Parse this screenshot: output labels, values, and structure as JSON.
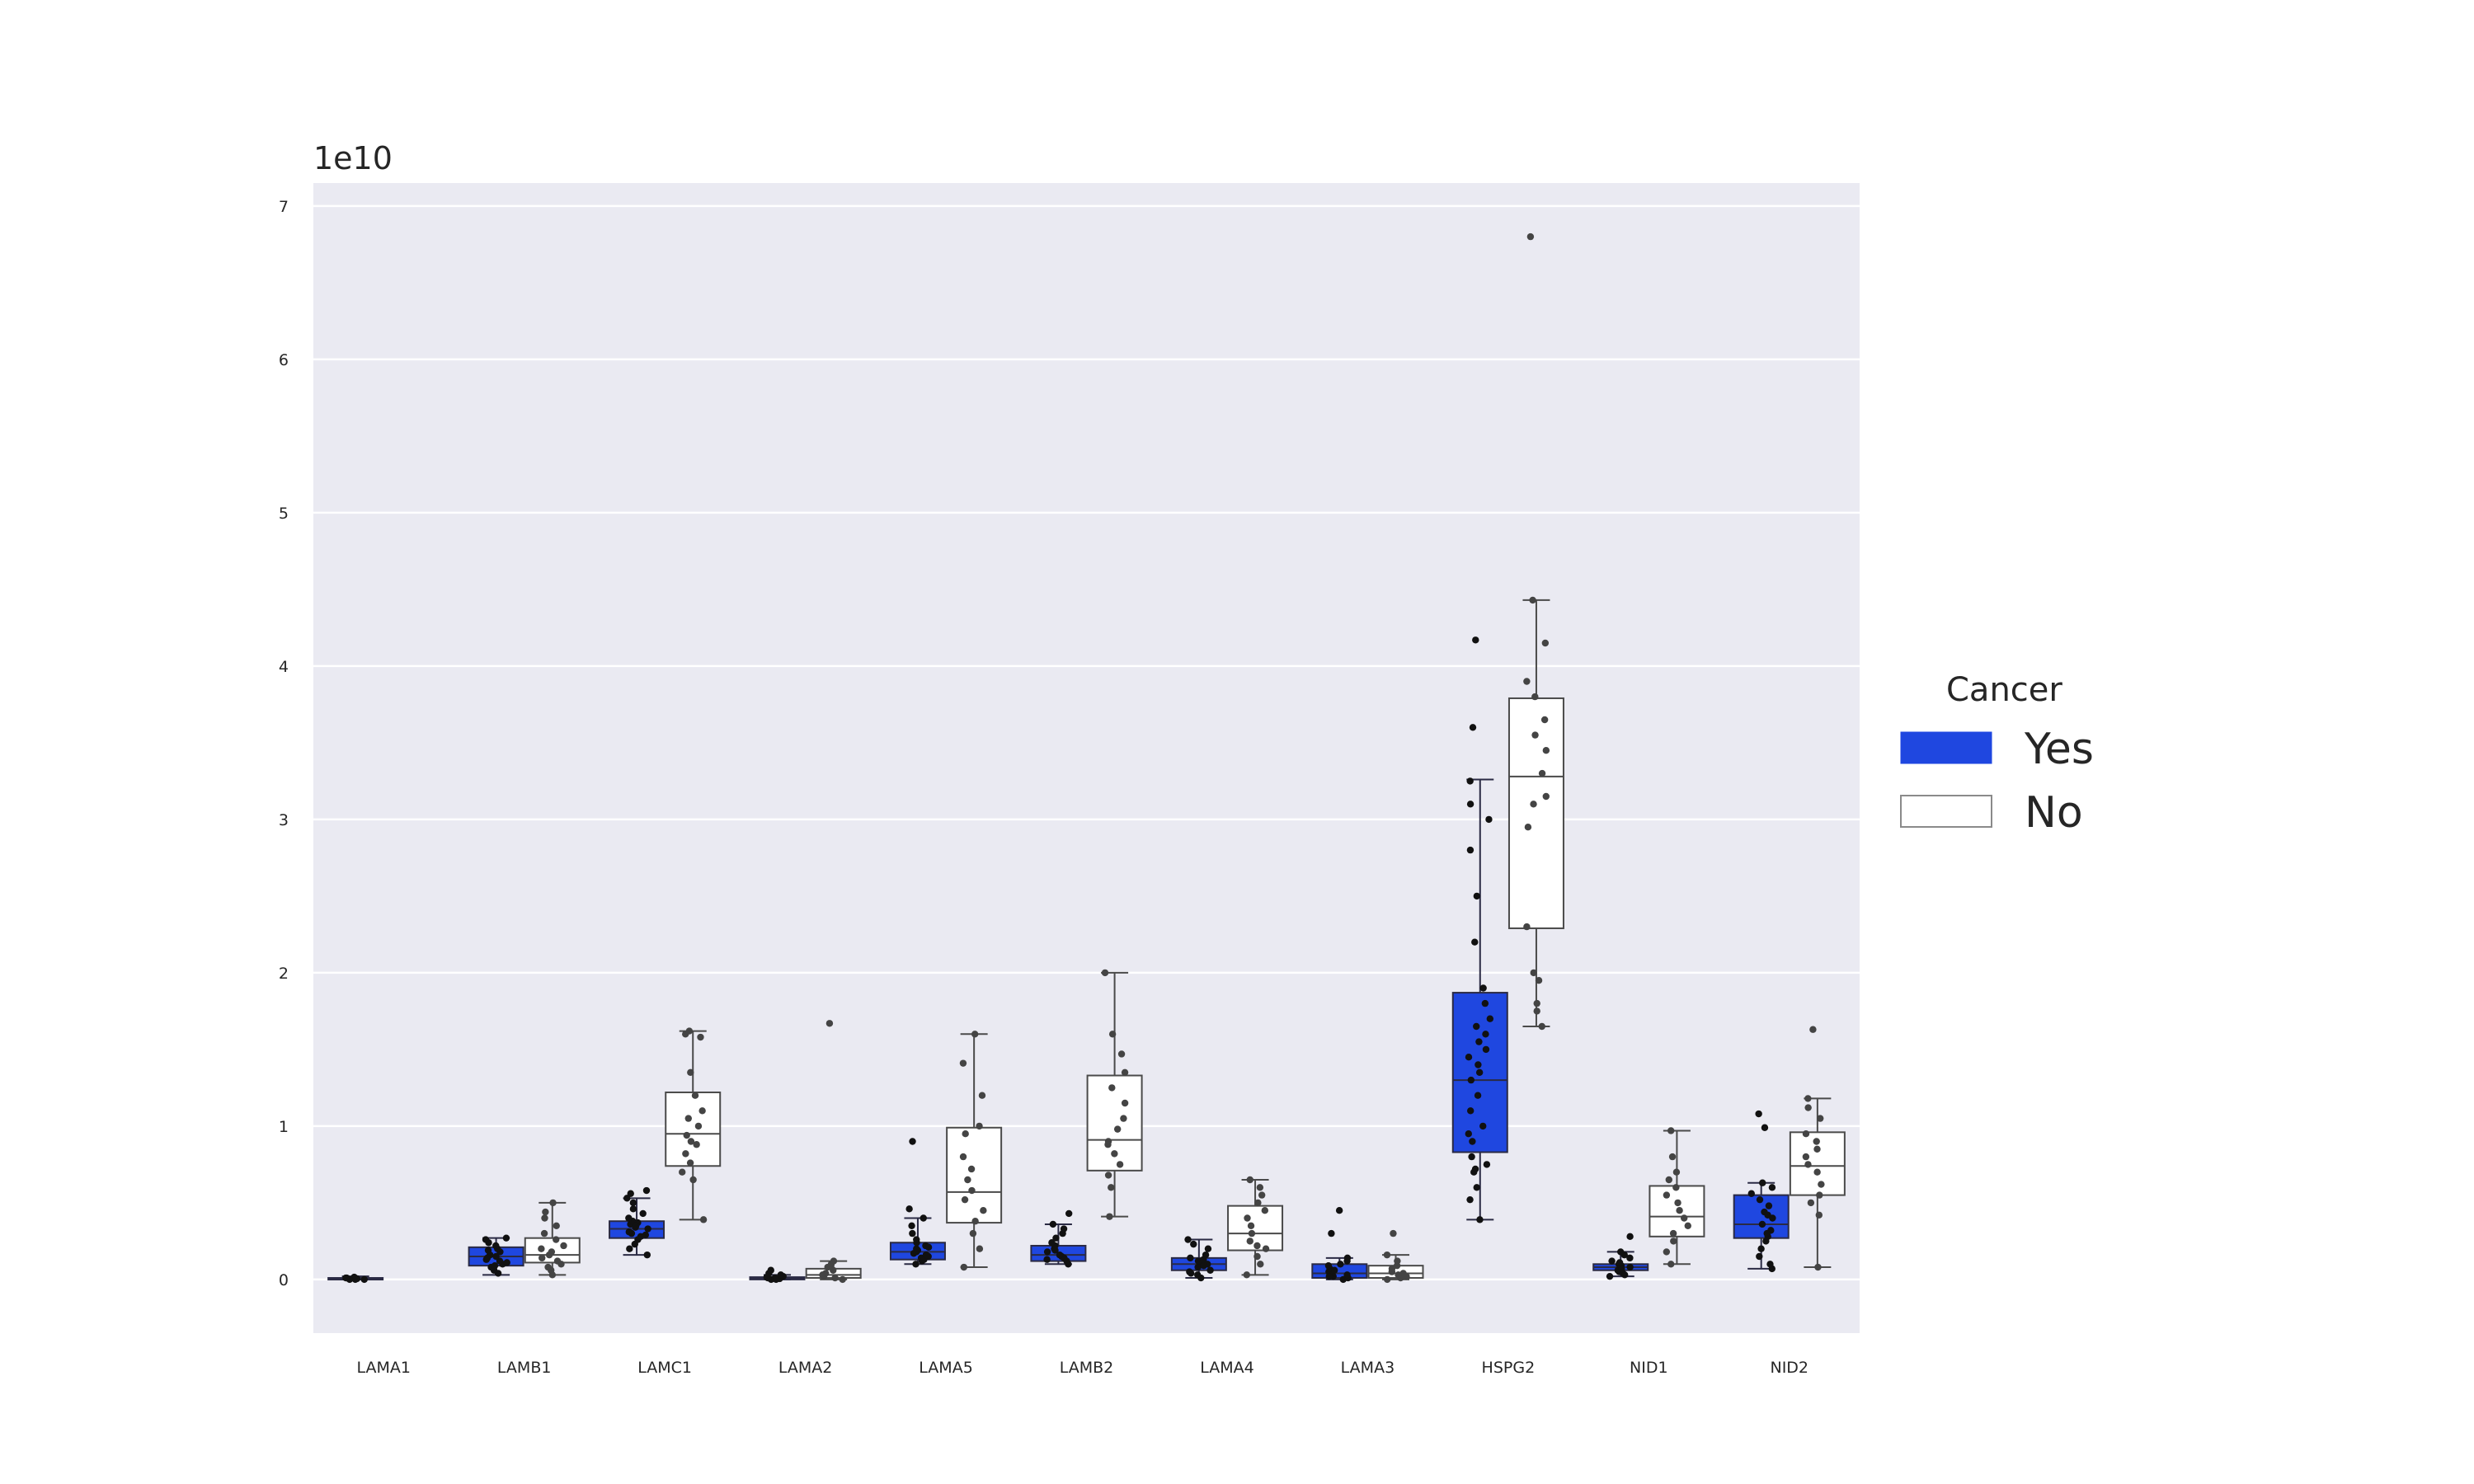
{
  "chart_data": {
    "type": "box",
    "title": "",
    "xlabel": "",
    "ylabel": "",
    "y_scale_label": "1e10",
    "ylim": [
      -0.35,
      7.15
    ],
    "yticks": [
      0,
      1,
      2,
      3,
      4,
      5,
      6,
      7
    ],
    "grid": true,
    "categories": [
      "LAMA1",
      "LAMB1",
      "LAMC1",
      "LAMA2",
      "LAMA5",
      "LAMB2",
      "LAMA4",
      "LAMA3",
      "HSPG2",
      "NID1",
      "NID2"
    ],
    "legend": {
      "title": "Cancer",
      "position": "right",
      "entries": [
        {
          "label": "Yes",
          "color": "#1f47e0"
        },
        {
          "label": "No",
          "color": "#ffffff"
        }
      ]
    },
    "series": [
      {
        "name": "Yes",
        "color": "#1f47e0",
        "boxes": [
          {
            "category": "LAMA1",
            "min": 0.0,
            "q1": 0.0,
            "median": 0.005,
            "q3": 0.01,
            "max": 0.02,
            "points": [
              0.0,
              0.005,
              0.01,
              0.0,
              0.015,
              0.005,
              0.01,
              0.0
            ]
          },
          {
            "category": "LAMB1",
            "min": 0.03,
            "q1": 0.09,
            "median": 0.15,
            "q3": 0.21,
            "max": 0.27,
            "points": [
              0.04,
              0.06,
              0.08,
              0.1,
              0.12,
              0.13,
              0.15,
              0.16,
              0.18,
              0.19,
              0.2,
              0.22,
              0.24,
              0.26,
              0.27,
              0.11,
              0.14,
              0.09
            ]
          },
          {
            "category": "LAMC1",
            "min": 0.16,
            "q1": 0.27,
            "median": 0.33,
            "q3": 0.38,
            "max": 0.53,
            "points": [
              0.16,
              0.2,
              0.23,
              0.26,
              0.28,
              0.3,
              0.31,
              0.33,
              0.34,
              0.36,
              0.37,
              0.38,
              0.4,
              0.43,
              0.46,
              0.5,
              0.53,
              0.58,
              0.56,
              0.29,
              0.35
            ]
          },
          {
            "category": "LAMA2",
            "min": 0.0,
            "q1": 0.0,
            "median": 0.005,
            "q3": 0.015,
            "max": 0.03,
            "points": [
              0.0,
              0.005,
              0.01,
              0.02,
              0.03,
              0.04,
              0.06,
              0.0,
              0.01,
              0.015
            ]
          },
          {
            "category": "LAMA5",
            "min": 0.1,
            "q1": 0.13,
            "median": 0.18,
            "q3": 0.24,
            "max": 0.4,
            "points": [
              0.1,
              0.12,
              0.14,
              0.15,
              0.17,
              0.18,
              0.19,
              0.2,
              0.22,
              0.24,
              0.26,
              0.3,
              0.35,
              0.4,
              0.46,
              0.9,
              0.13,
              0.16,
              0.21
            ]
          },
          {
            "category": "LAMB2",
            "min": 0.1,
            "q1": 0.12,
            "median": 0.16,
            "q3": 0.22,
            "max": 0.36,
            "points": [
              0.1,
              0.12,
              0.14,
              0.15,
              0.16,
              0.18,
              0.2,
              0.22,
              0.24,
              0.27,
              0.3,
              0.33,
              0.36,
              0.43,
              0.13,
              0.19
            ]
          },
          {
            "category": "LAMA4",
            "min": 0.01,
            "q1": 0.06,
            "median": 0.1,
            "q3": 0.14,
            "max": 0.26,
            "points": [
              0.01,
              0.03,
              0.05,
              0.06,
              0.08,
              0.1,
              0.11,
              0.12,
              0.14,
              0.16,
              0.2,
              0.23,
              0.26,
              0.04,
              0.09,
              0.13
            ]
          },
          {
            "category": "LAMA3",
            "min": 0.0,
            "q1": 0.01,
            "median": 0.04,
            "q3": 0.1,
            "max": 0.14,
            "points": [
              0.0,
              0.01,
              0.02,
              0.03,
              0.04,
              0.05,
              0.07,
              0.09,
              0.1,
              0.12,
              0.14,
              0.3,
              0.45,
              0.02,
              0.06
            ]
          },
          {
            "category": "HSPG2",
            "min": 0.39,
            "q1": 0.83,
            "median": 1.3,
            "q3": 1.87,
            "max": 3.26,
            "points": [
              0.39,
              0.52,
              0.6,
              0.7,
              0.72,
              0.75,
              0.8,
              0.9,
              0.95,
              1.0,
              1.1,
              1.2,
              1.3,
              1.35,
              1.4,
              1.45,
              1.5,
              1.55,
              1.6,
              1.65,
              1.7,
              1.8,
              1.9,
              2.2,
              2.5,
              2.8,
              3.0,
              3.1,
              3.25,
              3.6,
              4.17
            ]
          },
          {
            "category": "NID1",
            "min": 0.02,
            "q1": 0.06,
            "median": 0.08,
            "q3": 0.1,
            "max": 0.18,
            "points": [
              0.02,
              0.04,
              0.05,
              0.06,
              0.07,
              0.08,
              0.09,
              0.1,
              0.12,
              0.14,
              0.16,
              0.18,
              0.28,
              0.03,
              0.11
            ]
          },
          {
            "category": "NID2",
            "min": 0.07,
            "q1": 0.27,
            "median": 0.36,
            "q3": 0.55,
            "max": 0.63,
            "points": [
              0.07,
              0.1,
              0.15,
              0.2,
              0.25,
              0.28,
              0.32,
              0.36,
              0.4,
              0.44,
              0.48,
              0.52,
              0.56,
              0.6,
              0.63,
              0.99,
              1.08,
              0.3,
              0.42
            ]
          }
        ]
      },
      {
        "name": "No",
        "color": "#ffffff",
        "boxes": [
          {
            "category": "LAMA1",
            "min": null,
            "q1": null,
            "median": null,
            "q3": null,
            "max": null,
            "points": []
          },
          {
            "category": "LAMB1",
            "min": 0.03,
            "q1": 0.11,
            "median": 0.16,
            "q3": 0.27,
            "max": 0.5,
            "points": [
              0.03,
              0.06,
              0.1,
              0.12,
              0.14,
              0.16,
              0.18,
              0.22,
              0.26,
              0.3,
              0.35,
              0.4,
              0.44,
              0.5,
              0.08,
              0.2
            ]
          },
          {
            "category": "LAMC1",
            "min": 0.39,
            "q1": 0.74,
            "median": 0.95,
            "q3": 1.22,
            "max": 1.62,
            "points": [
              0.39,
              0.65,
              0.7,
              0.76,
              0.82,
              0.88,
              0.94,
              1.0,
              1.05,
              1.1,
              1.2,
              1.35,
              1.58,
              1.6,
              1.62,
              0.9
            ]
          },
          {
            "category": "LAMA2",
            "min": 0.0,
            "q1": 0.01,
            "median": 0.03,
            "q3": 0.07,
            "max": 0.12,
            "points": [
              0.0,
              0.01,
              0.02,
              0.04,
              0.06,
              0.08,
              0.1,
              0.12,
              1.67,
              0.03
            ]
          },
          {
            "category": "LAMA5",
            "min": 0.08,
            "q1": 0.37,
            "median": 0.57,
            "q3": 0.99,
            "max": 1.6,
            "points": [
              0.08,
              0.2,
              0.3,
              0.38,
              0.45,
              0.52,
              0.58,
              0.65,
              0.72,
              0.8,
              0.95,
              1.0,
              1.2,
              1.41,
              1.6
            ]
          },
          {
            "category": "LAMB2",
            "min": 0.41,
            "q1": 0.71,
            "median": 0.91,
            "q3": 1.33,
            "max": 2.0,
            "points": [
              0.41,
              0.6,
              0.68,
              0.75,
              0.82,
              0.9,
              0.98,
              1.05,
              1.15,
              1.25,
              1.35,
              1.47,
              1.6,
              2.0,
              0.88
            ]
          },
          {
            "category": "LAMA4",
            "min": 0.03,
            "q1": 0.19,
            "median": 0.3,
            "q3": 0.48,
            "max": 0.65,
            "points": [
              0.03,
              0.1,
              0.15,
              0.2,
              0.25,
              0.3,
              0.35,
              0.4,
              0.45,
              0.5,
              0.55,
              0.6,
              0.65,
              0.22
            ]
          },
          {
            "category": "LAMA3",
            "min": 0.0,
            "q1": 0.01,
            "median": 0.04,
            "q3": 0.09,
            "max": 0.16,
            "points": [
              0.0,
              0.01,
              0.02,
              0.03,
              0.05,
              0.07,
              0.09,
              0.12,
              0.16,
              0.3,
              0.04
            ]
          },
          {
            "category": "HSPG2",
            "min": 1.65,
            "q1": 2.29,
            "median": 3.28,
            "q3": 3.79,
            "max": 4.43,
            "points": [
              1.65,
              1.75,
              1.8,
              1.95,
              2.0,
              2.3,
              2.95,
              3.1,
              3.15,
              3.3,
              3.45,
              3.55,
              3.65,
              3.8,
              3.9,
              4.15,
              4.43,
              6.8
            ]
          },
          {
            "category": "NID1",
            "min": 0.1,
            "q1": 0.28,
            "median": 0.41,
            "q3": 0.61,
            "max": 0.97,
            "points": [
              0.1,
              0.18,
              0.25,
              0.3,
              0.35,
              0.4,
              0.45,
              0.5,
              0.55,
              0.6,
              0.65,
              0.7,
              0.8,
              0.97
            ]
          },
          {
            "category": "NID2",
            "min": 0.08,
            "q1": 0.55,
            "median": 0.74,
            "q3": 0.96,
            "max": 1.18,
            "points": [
              0.08,
              0.42,
              0.5,
              0.55,
              0.62,
              0.7,
              0.75,
              0.8,
              0.85,
              0.9,
              0.95,
              1.05,
              1.12,
              1.18,
              1.63
            ]
          }
        ]
      }
    ]
  }
}
